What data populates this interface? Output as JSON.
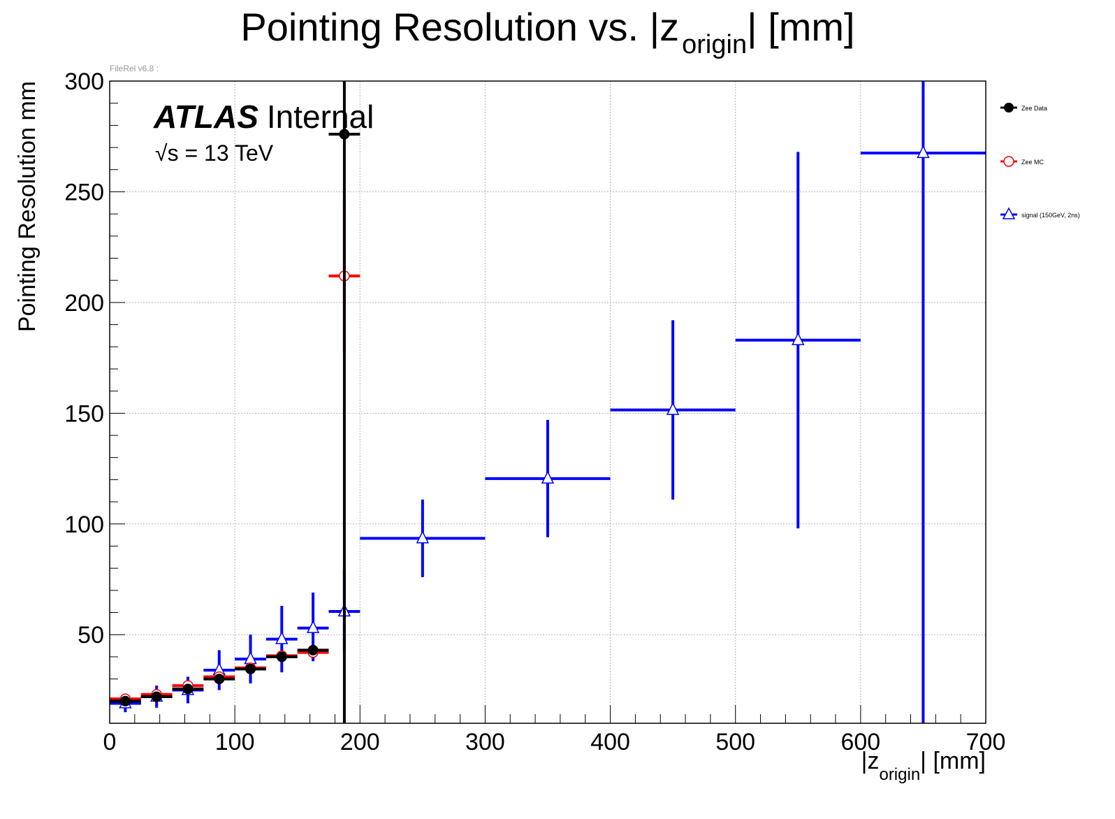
{
  "title": {
    "main": "Pointing Resolution vs. |z",
    "sub": "origin",
    "tail": "| [mm]"
  },
  "file_label": "FileRel v6.8 :",
  "atlas": {
    "bold": "ATLAS",
    "rest": "Internal",
    "energy_sqrt": "√s",
    "energy_tail": " = 13 TeV"
  },
  "colors": {
    "data": "#000000",
    "mc": "#ff0000",
    "signal": "#0000ff",
    "grid": "#b3b3b3"
  },
  "chart_data": {
    "type": "scatter",
    "xlabel": {
      "pre": "|z",
      "sub": "origin",
      "post": "| [mm]"
    },
    "ylabel": "Pointing Resolution mm",
    "xlim": [
      0,
      700
    ],
    "ylim": [
      10,
      300
    ],
    "xticks": [
      0,
      100,
      200,
      300,
      400,
      500,
      600,
      700
    ],
    "yticks": [
      50,
      100,
      150,
      200,
      250,
      300
    ],
    "grid": true,
    "legend_position": "right",
    "series": [
      {
        "name": "Zee Data",
        "key": "data",
        "marker": "filled-circle",
        "points": [
          {
            "x": 12.5,
            "xlo": 0,
            "xhi": 25,
            "y": 20,
            "ylo": 19,
            "yhi": 21
          },
          {
            "x": 37.5,
            "xlo": 25,
            "xhi": 50,
            "y": 22,
            "ylo": 21,
            "yhi": 23
          },
          {
            "x": 62.5,
            "xlo": 50,
            "xhi": 75,
            "y": 25.5,
            "ylo": 24.5,
            "yhi": 26.5
          },
          {
            "x": 87.5,
            "xlo": 75,
            "xhi": 100,
            "y": 30,
            "ylo": 29,
            "yhi": 31
          },
          {
            "x": 112.5,
            "xlo": 100,
            "xhi": 125,
            "y": 34.5,
            "ylo": 33,
            "yhi": 36
          },
          {
            "x": 137.5,
            "xlo": 125,
            "xhi": 150,
            "y": 40,
            "ylo": 38.5,
            "yhi": 41.5
          },
          {
            "x": 162.5,
            "xlo": 150,
            "xhi": 175,
            "y": 43,
            "ylo": 41.5,
            "yhi": 44.5
          },
          {
            "x": 187.5,
            "xlo": 175,
            "xhi": 200,
            "y": 276,
            "ylo": 10,
            "yhi": 300
          }
        ]
      },
      {
        "name": "Zee MC",
        "key": "mc",
        "marker": "open-circle",
        "points": [
          {
            "x": 12.5,
            "xlo": 0,
            "xhi": 25,
            "y": 21,
            "ylo": 20.5,
            "yhi": 21.5
          },
          {
            "x": 37.5,
            "xlo": 25,
            "xhi": 50,
            "y": 23,
            "ylo": 22.5,
            "yhi": 23.5
          },
          {
            "x": 62.5,
            "xlo": 50,
            "xhi": 75,
            "y": 27,
            "ylo": 26.5,
            "yhi": 27.5
          },
          {
            "x": 87.5,
            "xlo": 75,
            "xhi": 100,
            "y": 31,
            "ylo": 30.5,
            "yhi": 31.5
          },
          {
            "x": 112.5,
            "xlo": 100,
            "xhi": 125,
            "y": 35,
            "ylo": 34.5,
            "yhi": 35.5
          },
          {
            "x": 137.5,
            "xlo": 125,
            "xhi": 150,
            "y": 40.5,
            "ylo": 40,
            "yhi": 41
          },
          {
            "x": 162.5,
            "xlo": 150,
            "xhi": 175,
            "y": 42,
            "ylo": 41.5,
            "yhi": 42.5
          },
          {
            "x": 187.5,
            "xlo": 175,
            "xhi": 200,
            "y": 212,
            "ylo": 178,
            "yhi": 246
          }
        ]
      },
      {
        "name": "signal (150GeV, 2ns)",
        "key": "signal",
        "marker": "open-triangle",
        "points": [
          {
            "x": 12.5,
            "xlo": 0,
            "xhi": 25,
            "y": 19,
            "ylo": 15,
            "yhi": 22
          },
          {
            "x": 37.5,
            "xlo": 25,
            "xhi": 50,
            "y": 22,
            "ylo": 17,
            "yhi": 27
          },
          {
            "x": 62.5,
            "xlo": 50,
            "xhi": 75,
            "y": 25,
            "ylo": 19,
            "yhi": 31
          },
          {
            "x": 87.5,
            "xlo": 75,
            "xhi": 100,
            "y": 34,
            "ylo": 25,
            "yhi": 43
          },
          {
            "x": 112.5,
            "xlo": 100,
            "xhi": 125,
            "y": 39,
            "ylo": 28,
            "yhi": 50
          },
          {
            "x": 137.5,
            "xlo": 125,
            "xhi": 150,
            "y": 48,
            "ylo": 33,
            "yhi": 63
          },
          {
            "x": 162.5,
            "xlo": 150,
            "xhi": 175,
            "y": 53,
            "ylo": 38,
            "yhi": 69
          },
          {
            "x": 187.5,
            "xlo": 175,
            "xhi": 200,
            "y": 60.5,
            "ylo": 42,
            "yhi": 79
          },
          {
            "x": 250,
            "xlo": 200,
            "xhi": 300,
            "y": 93.5,
            "ylo": 76,
            "yhi": 111
          },
          {
            "x": 350,
            "xlo": 300,
            "xhi": 400,
            "y": 120.5,
            "ylo": 94,
            "yhi": 147
          },
          {
            "x": 450,
            "xlo": 400,
            "xhi": 500,
            "y": 151.5,
            "ylo": 111,
            "yhi": 192
          },
          {
            "x": 550,
            "xlo": 500,
            "xhi": 600,
            "y": 183,
            "ylo": 98,
            "yhi": 268
          },
          {
            "x": 650,
            "xlo": 600,
            "xhi": 700,
            "y": 267.5,
            "ylo": 10,
            "yhi": 300
          }
        ]
      }
    ]
  }
}
